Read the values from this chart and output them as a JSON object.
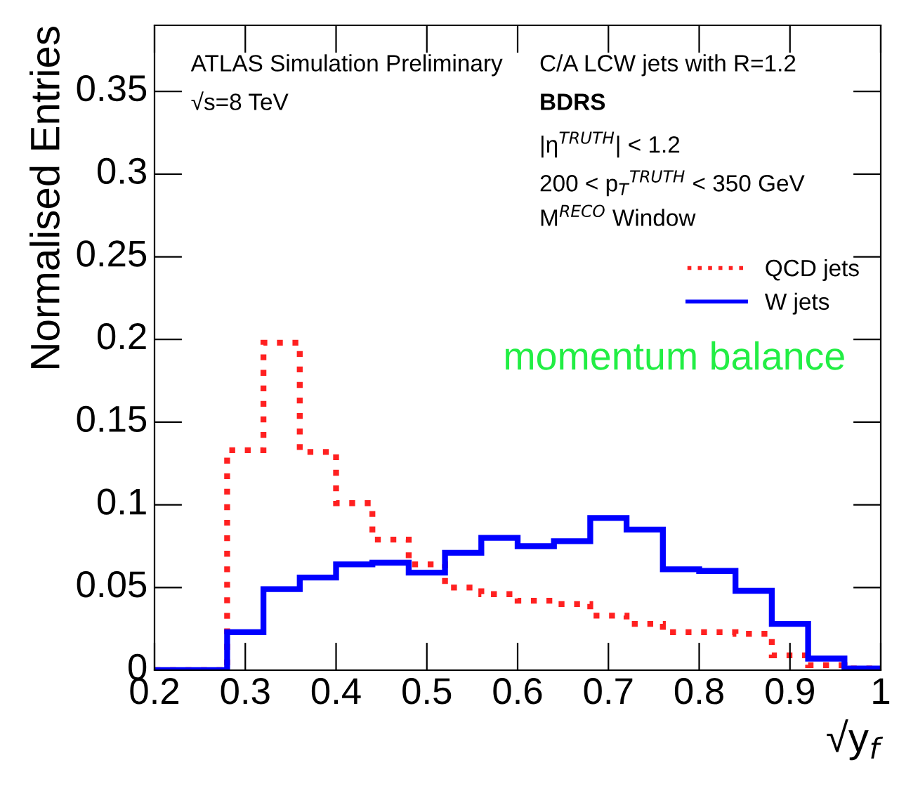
{
  "chart_data": {
    "type": "histogram",
    "xlabel": "√y$_{f}$",
    "ylabel": "Normalised Entries",
    "bins": [
      0.2,
      0.24,
      0.28,
      0.32,
      0.36,
      0.4,
      0.44,
      0.48,
      0.52,
      0.56,
      0.6,
      0.64,
      0.68,
      0.72,
      0.76,
      0.8,
      0.84,
      0.88,
      0.92,
      0.96,
      1.0
    ],
    "series": [
      {
        "name": "QCD jets",
        "color": "#ff2020",
        "line_style": "dotted",
        "values": [
          0,
          0,
          0.133,
          0.198,
          0.132,
          0.101,
          0.079,
          0.064,
          0.05,
          0.046,
          0.042,
          0.04,
          0.033,
          0.028,
          0.023,
          0.023,
          0.022,
          0.009,
          0.003,
          0.001
        ]
      },
      {
        "name": "W jets",
        "color": "#0000ff",
        "line_style": "solid",
        "values": [
          0,
          0,
          0.023,
          0.049,
          0.056,
          0.064,
          0.065,
          0.059,
          0.071,
          0.08,
          0.075,
          0.078,
          0.092,
          0.085,
          0.061,
          0.06,
          0.048,
          0.028,
          0.007,
          0.001
        ]
      }
    ],
    "xlim": [
      0.2,
      1.0
    ],
    "ylim": [
      0,
      0.39
    ],
    "xticks": [
      0.2,
      0.3,
      0.4,
      0.5,
      0.6,
      0.7,
      0.8,
      0.9,
      1
    ],
    "yticks": [
      0,
      0.05,
      0.1,
      0.15,
      0.2,
      0.25,
      0.3,
      0.35
    ],
    "legend": "top right",
    "grid": false,
    "annotations": [
      "ATLAS Simulation Preliminary",
      "√s=8 TeV",
      "C/A LCW jets with R=1.2",
      "BDRS",
      "|η$^{TRUTH}$| < 1.2",
      "200 < p$_{T}$$^{TRUTH}$ < 350 GeV",
      "M$^{RECO}$ Window",
      "momentum balance"
    ]
  }
}
